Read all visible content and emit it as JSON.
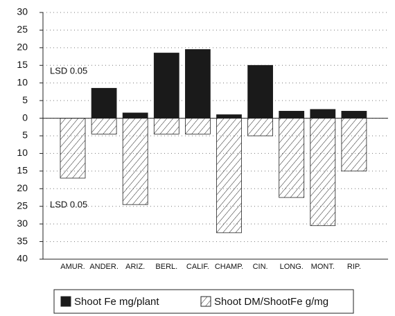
{
  "chart_data": {
    "type": "bar",
    "categories": [
      "AMUR.",
      "ANDER.",
      "ARIZ.",
      "BERL.",
      "CALIF.",
      "CHAMP.",
      "CIN.",
      "LONG.",
      "MONT.",
      "RIP."
    ],
    "series": [
      {
        "name": "Shoot Fe mg/plant",
        "color": "#1a1a1a",
        "values": [
          0,
          8.5,
          1.5,
          18.5,
          19.5,
          1,
          15,
          2,
          2.5,
          2
        ]
      },
      {
        "name": "Shoot DM/ShootFe g/mg",
        "color": "hatch",
        "values": [
          -17,
          -4.5,
          -24.5,
          -4.5,
          -4.5,
          -32.5,
          -5,
          -22.5,
          -30.5,
          -15
        ]
      }
    ],
    "annotations": [
      "LSD  0.05",
      "LSD  0.05"
    ],
    "ylim": [
      -40,
      30
    ],
    "yticks": [
      30,
      25,
      20,
      15,
      10,
      5,
      0,
      {
        "value": -5,
        "label": "5"
      },
      {
        "value": -10,
        "label": "10"
      },
      {
        "value": -15,
        "label": "15"
      },
      {
        "value": -20,
        "label": "20"
      },
      {
        "value": -25,
        "label": "25"
      },
      {
        "value": -30,
        "label": "30"
      },
      {
        "value": -35,
        "label": "35"
      },
      {
        "value": -40,
        "label": "40"
      }
    ],
    "grid": true
  }
}
